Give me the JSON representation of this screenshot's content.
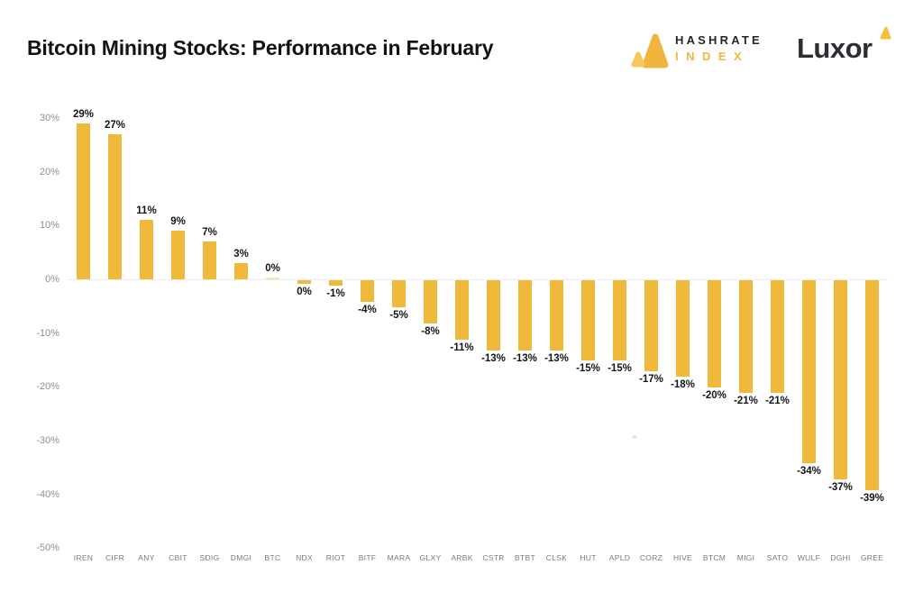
{
  "header": {
    "title": "Bitcoin Mining Stocks: Performance in February",
    "hashrate_logo": {
      "line1": "HASHRATE",
      "line2": "INDEX"
    },
    "luxor_logo": {
      "text": "Luxor"
    }
  },
  "colors": {
    "bar": "#EFB93B",
    "logo_yellow_dark": "#EFB53C",
    "logo_yellow_light": "#F5C75E",
    "luxor_triangle": "#F5BE3F",
    "value_label": "#131417",
    "axis_tick_label": "#909090",
    "ticker_label": "#7a7a7a",
    "zero_line": "#ececec"
  },
  "chart_data": {
    "type": "bar",
    "title": "Bitcoin Mining Stocks: Performance in February",
    "xlabel": "",
    "ylabel": "",
    "ylim": [
      -50,
      35
    ],
    "grid": false,
    "legend": null,
    "categories": [
      "IREN",
      "CIFR",
      "ANY",
      "CBIT",
      "SDIG",
      "DMGI",
      "BTC",
      "NDX",
      "RIOT",
      "BITF",
      "MARA",
      "GLXY",
      "ARBK",
      "CSTR",
      "BTBT",
      "CLSK",
      "HUT",
      "APLD",
      "CORZ",
      "HIVE",
      "BTCM",
      "MIGI",
      "SATO",
      "WULF",
      "DGHI",
      "GREE"
    ],
    "values": [
      29,
      27,
      11,
      9,
      7,
      3,
      0,
      0,
      -1,
      -4,
      -5,
      -8,
      -11,
      -13,
      -13,
      -13,
      -15,
      -15,
      -17,
      -18,
      -20,
      -21,
      -21,
      -34,
      -37,
      -39
    ],
    "value_labels": [
      "29%",
      "27%",
      "11%",
      "9%",
      "7%",
      "3%",
      "0%",
      "0%",
      "-1%",
      "-4%",
      "-5%",
      "-8%",
      "-11%",
      "-13%",
      "-13%",
      "-13%",
      "-15%",
      "-15%",
      "-17%",
      "-18%",
      "-20%",
      "-21%",
      "-21%",
      "-34%",
      "-37%",
      "-39%"
    ],
    "render_values": [
      29,
      27,
      11,
      9,
      7,
      3,
      0.3,
      -0.75,
      -1,
      -4,
      -5,
      -8,
      -11,
      -13,
      -13,
      -13,
      -15,
      -15,
      -17,
      -18,
      -20,
      -21,
      -21,
      -34,
      -37,
      -39
    ],
    "muted_indices": [
      6
    ],
    "y_ticks": [
      30,
      20,
      10,
      0,
      -10,
      -20,
      -30,
      -40,
      -50
    ],
    "y_tick_labels": [
      "30%",
      "20%",
      "10%",
      "0%",
      "-10%",
      "-20%",
      "-30%",
      "-40%",
      "-50%"
    ]
  }
}
